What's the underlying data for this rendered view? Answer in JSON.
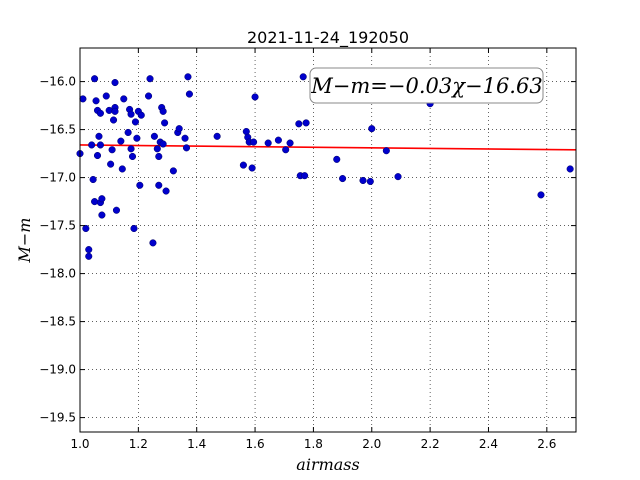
{
  "chart_data": {
    "type": "scatter",
    "title": "2021-11-24_192050",
    "xlabel": "airmass",
    "ylabel": "M−m",
    "xlim": [
      1.0,
      2.7
    ],
    "ylim": [
      -19.65,
      -15.65
    ],
    "y_inverted": true,
    "grid": true,
    "x_ticks": [
      1.0,
      1.2,
      1.4,
      1.6,
      1.8,
      2.0,
      2.2,
      2.4,
      2.6
    ],
    "x_tick_labels": [
      "1.0",
      "1.2",
      "1.4",
      "1.6",
      "1.8",
      "2.0",
      "2.2",
      "2.4",
      "2.6"
    ],
    "y_ticks": [
      -16.0,
      -16.5,
      -17.0,
      -17.5,
      -18.0,
      -18.5,
      -19.0,
      -19.5
    ],
    "y_tick_labels": [
      "−16.0",
      "−16.5",
      "−17.0",
      "−17.5",
      "−18.0",
      "−18.5",
      "−19.0",
      "−19.5"
    ],
    "annotation": "M−m=−0.03χ−16.63",
    "colors": {
      "points": "#0000cc",
      "fit": "#ff0000"
    },
    "fit_line": {
      "slope": -0.03,
      "intercept": -16.63
    },
    "points": [
      {
        "x": 1.0,
        "y": -16.75
      },
      {
        "x": 1.01,
        "y": -16.18
      },
      {
        "x": 1.02,
        "y": -17.53
      },
      {
        "x": 1.03,
        "y": -17.82
      },
      {
        "x": 1.03,
        "y": -17.75
      },
      {
        "x": 1.04,
        "y": -16.66
      },
      {
        "x": 1.045,
        "y": -17.02
      },
      {
        "x": 1.05,
        "y": -15.97
      },
      {
        "x": 1.05,
        "y": -17.25
      },
      {
        "x": 1.055,
        "y": -16.2
      },
      {
        "x": 1.06,
        "y": -16.3
      },
      {
        "x": 1.06,
        "y": -16.77
      },
      {
        "x": 1.065,
        "y": -16.57
      },
      {
        "x": 1.07,
        "y": -16.33
      },
      {
        "x": 1.07,
        "y": -16.66
      },
      {
        "x": 1.07,
        "y": -17.26
      },
      {
        "x": 1.075,
        "y": -17.22
      },
      {
        "x": 1.075,
        "y": -17.39
      },
      {
        "x": 1.09,
        "y": -16.15
      },
      {
        "x": 1.1,
        "y": -16.3
      },
      {
        "x": 1.105,
        "y": -16.86
      },
      {
        "x": 1.11,
        "y": -16.71
      },
      {
        "x": 1.115,
        "y": -16.4
      },
      {
        "x": 1.12,
        "y": -16.27
      },
      {
        "x": 1.12,
        "y": -16.31
      },
      {
        "x": 1.12,
        "y": -16.01
      },
      {
        "x": 1.125,
        "y": -17.34
      },
      {
        "x": 1.14,
        "y": -16.62
      },
      {
        "x": 1.145,
        "y": -16.91
      },
      {
        "x": 1.15,
        "y": -16.18
      },
      {
        "x": 1.165,
        "y": -16.53
      },
      {
        "x": 1.17,
        "y": -16.29
      },
      {
        "x": 1.175,
        "y": -16.34
      },
      {
        "x": 1.175,
        "y": -16.7
      },
      {
        "x": 1.18,
        "y": -16.78
      },
      {
        "x": 1.185,
        "y": -17.53
      },
      {
        "x": 1.19,
        "y": -16.42
      },
      {
        "x": 1.195,
        "y": -16.59
      },
      {
        "x": 1.2,
        "y": -16.31
      },
      {
        "x": 1.205,
        "y": -17.08
      },
      {
        "x": 1.21,
        "y": -16.35
      },
      {
        "x": 1.235,
        "y": -16.15
      },
      {
        "x": 1.24,
        "y": -15.97
      },
      {
        "x": 1.25,
        "y": -17.68
      },
      {
        "x": 1.255,
        "y": -16.57
      },
      {
        "x": 1.265,
        "y": -16.7
      },
      {
        "x": 1.27,
        "y": -16.78
      },
      {
        "x": 1.27,
        "y": -17.08
      },
      {
        "x": 1.275,
        "y": -16.63
      },
      {
        "x": 1.28,
        "y": -16.27
      },
      {
        "x": 1.285,
        "y": -16.31
      },
      {
        "x": 1.285,
        "y": -16.65
      },
      {
        "x": 1.29,
        "y": -16.43
      },
      {
        "x": 1.295,
        "y": -17.14
      },
      {
        "x": 1.32,
        "y": -16.93
      },
      {
        "x": 1.335,
        "y": -16.53
      },
      {
        "x": 1.34,
        "y": -16.49
      },
      {
        "x": 1.36,
        "y": -16.59
      },
      {
        "x": 1.365,
        "y": -16.69
      },
      {
        "x": 1.37,
        "y": -15.95
      },
      {
        "x": 1.375,
        "y": -16.13
      },
      {
        "x": 1.47,
        "y": -16.57
      },
      {
        "x": 1.56,
        "y": -16.87
      },
      {
        "x": 1.57,
        "y": -16.52
      },
      {
        "x": 1.575,
        "y": -16.58
      },
      {
        "x": 1.58,
        "y": -16.63
      },
      {
        "x": 1.59,
        "y": -16.9
      },
      {
        "x": 1.595,
        "y": -16.63
      },
      {
        "x": 1.6,
        "y": -16.16
      },
      {
        "x": 1.645,
        "y": -16.64
      },
      {
        "x": 1.68,
        "y": -16.61
      },
      {
        "x": 1.705,
        "y": -16.71
      },
      {
        "x": 1.72,
        "y": -16.64
      },
      {
        "x": 1.75,
        "y": -16.44
      },
      {
        "x": 1.755,
        "y": -16.98
      },
      {
        "x": 1.765,
        "y": -15.95
      },
      {
        "x": 1.77,
        "y": -16.98
      },
      {
        "x": 1.775,
        "y": -16.43
      },
      {
        "x": 1.88,
        "y": -16.81
      },
      {
        "x": 1.9,
        "y": -17.01
      },
      {
        "x": 1.97,
        "y": -17.03
      },
      {
        "x": 1.995,
        "y": -17.04
      },
      {
        "x": 2.0,
        "y": -16.49
      },
      {
        "x": 2.05,
        "y": -16.72
      },
      {
        "x": 2.09,
        "y": -16.99
      },
      {
        "x": 2.2,
        "y": -16.23
      },
      {
        "x": 2.58,
        "y": -17.18
      },
      {
        "x": 2.68,
        "y": -16.91
      }
    ]
  }
}
